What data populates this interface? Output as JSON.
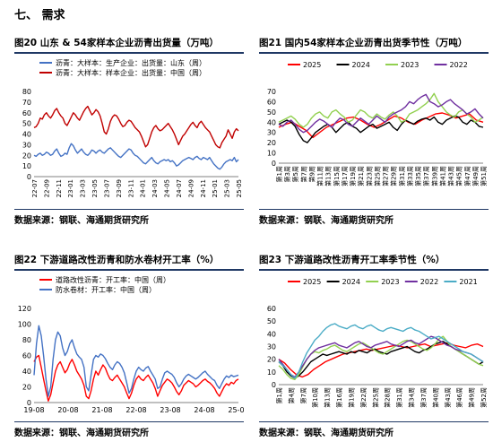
{
  "section_title": "七、 需求",
  "source_text": "数据来源：钢联、海通期货研究所",
  "chart_data": [
    {
      "id": "c20",
      "type": "line",
      "title": "图20  山东 & 54家样本企业沥青出货量（万吨）",
      "ylim": [
        0,
        80
      ],
      "yticks": [
        0,
        10,
        20,
        30,
        40,
        50,
        60,
        70,
        80
      ],
      "xticks": [
        "22-07",
        "22-09",
        "22-11",
        "23-01",
        "23-03",
        "23-05",
        "23-07",
        "23-09",
        "23-11",
        "24-01",
        "24-03",
        "24-05",
        "24-07",
        "24-09",
        "24-11",
        "25-01",
        "25-03",
        "25-05"
      ],
      "legend_position": "top-left",
      "series": [
        {
          "name": "沥青：大样本：生产企业：出货量：山东（周）",
          "color": "#4472c4",
          "values": [
            20,
            19,
            21,
            22,
            20,
            21,
            23,
            22,
            20,
            21,
            24,
            26,
            22,
            19,
            20,
            22,
            21,
            27,
            31,
            29,
            25,
            22,
            24,
            26,
            23,
            21,
            20,
            22,
            25,
            24,
            22,
            24,
            25,
            23,
            22,
            24,
            26,
            27,
            25,
            23,
            21,
            19,
            18,
            20,
            22,
            24,
            26,
            25,
            22,
            20,
            19,
            17,
            15,
            13,
            12,
            14,
            16,
            18,
            15,
            13,
            12,
            14,
            15,
            16,
            15,
            16,
            14,
            15,
            13,
            10,
            11,
            13,
            15,
            16,
            17,
            18,
            17,
            16,
            18,
            19,
            17,
            16,
            18,
            17,
            16,
            18,
            15,
            12,
            10,
            8,
            7,
            9,
            12,
            14,
            15,
            16,
            15,
            18,
            14,
            16
          ]
        },
        {
          "name": "沥青：大样本：样本企业：出货量：中国（周）",
          "color": "#c00000",
          "values": [
            46,
            47,
            50,
            55,
            54,
            58,
            60,
            57,
            55,
            58,
            62,
            64,
            60,
            57,
            55,
            50,
            48,
            52,
            56,
            60,
            58,
            55,
            53,
            57,
            61,
            64,
            66,
            62,
            58,
            60,
            63,
            61,
            57,
            50,
            42,
            40,
            45,
            52,
            56,
            58,
            57,
            54,
            50,
            47,
            48,
            51,
            53,
            52,
            49,
            46,
            44,
            42,
            38,
            33,
            28,
            30,
            36,
            42,
            46,
            48,
            45,
            43,
            44,
            46,
            48,
            50,
            47,
            44,
            40,
            35,
            30,
            34,
            38,
            40,
            43,
            46,
            49,
            51,
            48,
            46,
            50,
            52,
            49,
            46,
            44,
            42,
            38,
            34,
            30,
            28,
            27,
            32,
            35,
            38,
            44,
            40,
            36,
            42,
            45,
            43
          ]
        }
      ]
    },
    {
      "id": "c21",
      "type": "line",
      "title": "图21  国内54家样本企业沥青出货季节性（万吨）",
      "ylim": [
        0,
        70
      ],
      "yticks": [
        0,
        10,
        20,
        30,
        40,
        50,
        60,
        70
      ],
      "xticks": [
        "第1周",
        "第3周",
        "第5周",
        "第7周",
        "第9周",
        "第11周",
        "第13周",
        "第15周",
        "第17周",
        "第19周",
        "第21周",
        "第23周",
        "第25周",
        "第27周",
        "第29周",
        "第31周",
        "第33周",
        "第35周",
        "第37周",
        "第39周",
        "第41周",
        "第43周",
        "第45周",
        "第47周",
        "第49周",
        "第51周"
      ],
      "legend_position": "top",
      "series": [
        {
          "name": "2025",
          "color": "#ff0000",
          "values": [
            35,
            38,
            40,
            36,
            32,
            25,
            30,
            35,
            38,
            41,
            44,
            45,
            42,
            38,
            35,
            38,
            42,
            46,
            44,
            40,
            38,
            42,
            45,
            48,
            49,
            47,
            44,
            46,
            48,
            42,
            40
          ]
        },
        {
          "name": "2024",
          "color": "#000000",
          "values": [
            38,
            40,
            42,
            40,
            36,
            28,
            22,
            20,
            25,
            30,
            33,
            36,
            38,
            35,
            30,
            34,
            38,
            40,
            36,
            34,
            30,
            33,
            36,
            38,
            34,
            36,
            38,
            40,
            35,
            32,
            38,
            42,
            40,
            38,
            41,
            43,
            44,
            42,
            45,
            40,
            38,
            42,
            44,
            46,
            45,
            40,
            38,
            42,
            40,
            36,
            35
          ]
        },
        {
          "name": "2023",
          "color": "#92d050",
          "values": [
            40,
            42,
            44,
            46,
            43,
            38,
            35,
            38,
            44,
            48,
            50,
            46,
            44,
            50,
            52,
            48,
            45,
            40,
            42,
            47,
            52,
            50,
            46,
            44,
            48,
            45,
            43,
            47,
            50,
            46,
            40,
            42,
            48,
            50,
            52,
            55,
            58,
            62,
            68,
            60,
            55,
            50,
            47,
            45,
            50,
            52,
            48,
            45,
            40,
            42,
            45
          ]
        },
        {
          "name": "2022",
          "color": "#7030a0",
          "values": [
            38,
            36,
            40,
            42,
            38,
            33,
            30,
            32,
            36,
            40,
            43,
            41,
            38,
            35,
            40,
            44,
            42,
            38,
            36,
            40,
            44,
            41,
            38,
            42,
            46,
            43,
            40,
            45,
            48,
            50,
            52,
            55,
            60,
            58,
            62,
            65,
            67,
            60,
            58,
            55,
            57,
            60,
            62,
            58,
            55,
            52,
            48,
            50,
            53,
            48,
            44
          ]
        }
      ]
    },
    {
      "id": "c22",
      "type": "line",
      "title": "图22  下游道路改性沥青和防水卷材开工率（%）",
      "ylim": [
        0,
        120
      ],
      "yticks": [
        0,
        20,
        40,
        60,
        80,
        100,
        120
      ],
      "xticks": [
        "19-08",
        "20-08",
        "21-08",
        "22-08",
        "23-08",
        "24-08",
        "25-08"
      ],
      "legend_position": "top-left",
      "series": [
        {
          "name": "道路改性沥青：开工率：中国（周）",
          "color": "#ff0000",
          "values": [
            52,
            58,
            60,
            45,
            30,
            15,
            2,
            10,
            25,
            40,
            48,
            52,
            45,
            38,
            42,
            50,
            55,
            48,
            40,
            35,
            30,
            22,
            8,
            5,
            15,
            30,
            40,
            35,
            42,
            48,
            44,
            36,
            30,
            28,
            32,
            35,
            30,
            25,
            20,
            12,
            5,
            12,
            22,
            30,
            34,
            30,
            28,
            32,
            35,
            30,
            25,
            18,
            8,
            15,
            22,
            26,
            30,
            28,
            25,
            20,
            14,
            10,
            15,
            22,
            25,
            28,
            26,
            24,
            20,
            22,
            25,
            28,
            30,
            27,
            25,
            22,
            18,
            12,
            8,
            14,
            20,
            24,
            22,
            26,
            24,
            28,
            30
          ]
        },
        {
          "name": "防水卷材：开工率：中国（周）",
          "color": "#4472c4",
          "values": [
            35,
            75,
            98,
            85,
            60,
            30,
            8,
            20,
            55,
            80,
            90,
            85,
            70,
            60,
            65,
            75,
            80,
            70,
            62,
            58,
            55,
            45,
            20,
            15,
            35,
            55,
            60,
            58,
            62,
            60,
            56,
            50,
            45,
            42,
            48,
            52,
            50,
            45,
            38,
            25,
            12,
            18,
            30,
            40,
            45,
            42,
            40,
            44,
            46,
            40,
            35,
            30,
            18,
            20,
            30,
            38,
            40,
            38,
            36,
            32,
            25,
            20,
            24,
            30,
            34,
            36,
            34,
            32,
            30,
            32,
            35,
            38,
            40,
            36,
            33,
            30,
            28,
            22,
            18,
            24,
            30,
            34,
            32,
            35,
            33,
            34,
            35
          ]
        }
      ]
    },
    {
      "id": "c23",
      "type": "line",
      "title": "图23  下游道路改性沥青开工率季节性（%）",
      "ylim": [
        0,
        60
      ],
      "yticks": [
        0,
        10,
        20,
        30,
        40,
        50,
        60
      ],
      "xticks": [
        "第1周",
        "第4周",
        "第7周",
        "第10周",
        "第13周",
        "第16周",
        "第19周",
        "第22周",
        "第25周",
        "第28周",
        "第31周",
        "第34周",
        "第37周",
        "第40周",
        "第43周",
        "第46周",
        "第49周",
        "第52周"
      ],
      "legend_position": "top",
      "series": [
        {
          "name": "2025",
          "color": "#ff0000",
          "values": [
            20,
            17,
            12,
            8,
            6,
            8,
            12,
            15,
            18,
            20,
            22,
            24,
            25,
            26,
            27,
            28,
            27,
            28,
            29,
            30,
            31,
            30,
            29,
            30,
            31,
            32,
            30,
            31,
            32,
            33,
            31,
            30,
            29,
            31,
            32,
            30
          ]
        },
        {
          "name": "2024",
          "color": "#000000",
          "values": [
            18,
            15,
            10,
            7,
            5,
            7,
            10,
            14,
            18,
            20,
            22,
            24,
            23,
            24,
            25,
            26,
            25,
            24,
            26,
            25,
            27,
            26,
            25,
            27,
            28,
            26,
            25,
            24,
            26,
            27,
            28,
            29,
            30,
            28,
            26,
            25,
            27,
            28,
            30,
            32,
            33,
            34,
            32,
            30,
            28,
            26,
            24,
            22,
            20,
            18,
            16,
            18
          ]
        },
        {
          "name": "2023",
          "color": "#92d050",
          "values": [
            15,
            12,
            8,
            5,
            4,
            8,
            14,
            20,
            24,
            26,
            25,
            27,
            28,
            30,
            31,
            29,
            27,
            26,
            28,
            30,
            32,
            33,
            31,
            29,
            27,
            25,
            24,
            26,
            28,
            30,
            32,
            34,
            35,
            34,
            32,
            30,
            28,
            27,
            29,
            32,
            36,
            38,
            34,
            30,
            28,
            26,
            24,
            22,
            20,
            18,
            16,
            15
          ]
        },
        {
          "name": "2022",
          "color": "#7030a0",
          "values": [
            20,
            16,
            12,
            8,
            6,
            10,
            15,
            20,
            24,
            27,
            29,
            30,
            31,
            32,
            33,
            31,
            30,
            29,
            31,
            33,
            34,
            32,
            30,
            29,
            31,
            32,
            33,
            34,
            32,
            31,
            30,
            32,
            34,
            35,
            33,
            32,
            34,
            36,
            38,
            37,
            35,
            33,
            31,
            30,
            28,
            27,
            26,
            25,
            24,
            22,
            20,
            18
          ]
        },
        {
          "name": "2021",
          "color": "#4bacc6",
          "values": [
            18,
            15,
            12,
            8,
            5,
            10,
            18,
            25,
            30,
            35,
            38,
            42,
            45,
            47,
            48,
            46,
            45,
            44,
            46,
            47,
            45,
            44,
            46,
            47,
            45,
            43,
            42,
            44,
            45,
            44,
            43,
            42,
            44,
            45,
            43,
            42,
            40,
            38,
            36,
            37,
            38,
            36,
            34,
            32,
            30,
            28,
            26,
            25,
            24,
            22,
            20,
            18
          ]
        }
      ]
    }
  ]
}
